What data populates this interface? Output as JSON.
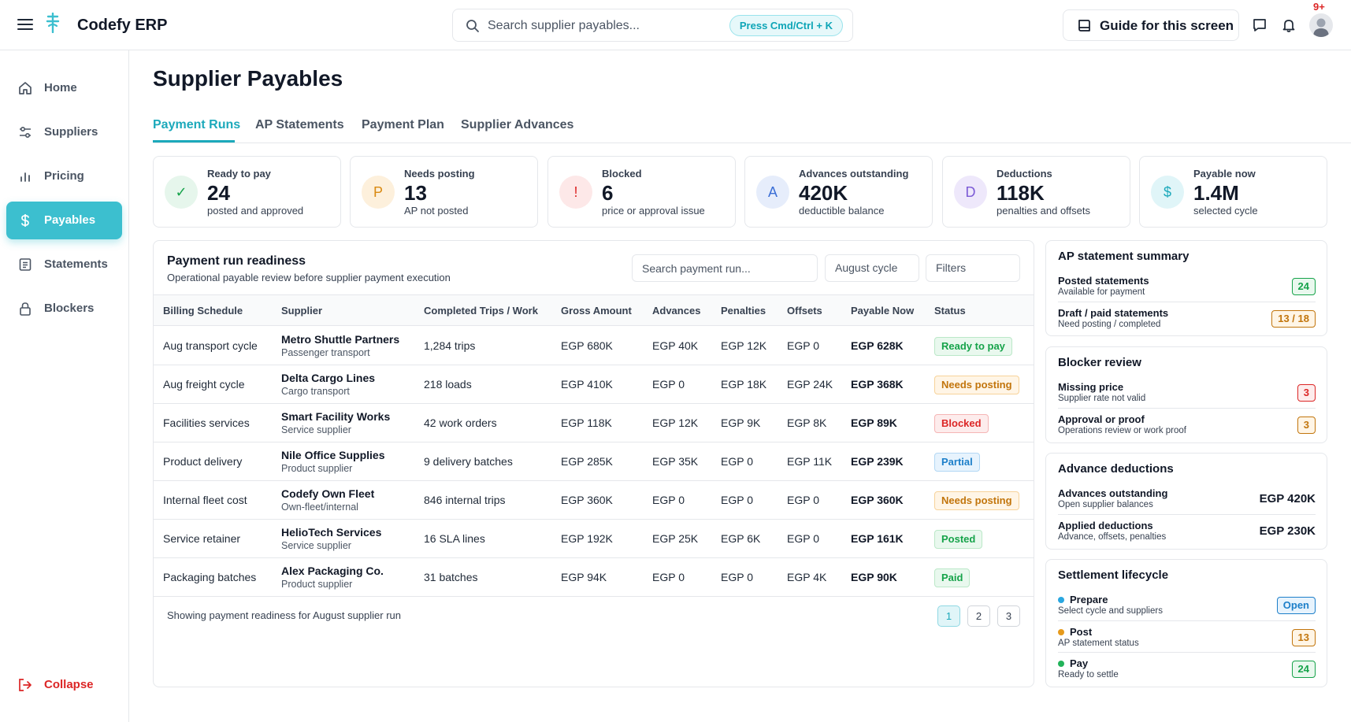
{
  "app": {
    "title": "Codefy ERP",
    "search_placeholder": "Search supplier payables...",
    "search_hint": "Press Cmd/Ctrl + K",
    "guide_label": "Guide for this screen",
    "notification_count": "9+",
    "accent_color": "#3cbfcf"
  },
  "sidebar": {
    "items": [
      {
        "label": "Home",
        "icon": "home-icon"
      },
      {
        "label": "Suppliers",
        "icon": "sliders-icon"
      },
      {
        "label": "Pricing",
        "icon": "bar-chart-icon"
      },
      {
        "label": "Payables",
        "icon": "dollar-icon",
        "active": true
      },
      {
        "label": "Statements",
        "icon": "document-icon"
      },
      {
        "label": "Blockers",
        "icon": "lock-icon"
      }
    ],
    "collapse_label": "Collapse"
  },
  "page": {
    "title": "Supplier Payables",
    "tabs": [
      "Payment Runs",
      "AP Statements",
      "Payment Plan",
      "Supplier Advances"
    ],
    "active_tab": "Payment Runs"
  },
  "kpis": [
    {
      "title": "Ready to pay",
      "value": "24",
      "sub": "posted and approved",
      "icon": "✓",
      "color": "#16a34a",
      "bg": "#e6f6ec"
    },
    {
      "title": "Needs posting",
      "value": "13",
      "sub": "AP not posted",
      "icon": "P",
      "color": "#d98a12",
      "bg": "#fdf0dc"
    },
    {
      "title": "Blocked",
      "value": "6",
      "sub": "price or approval issue",
      "icon": "!",
      "color": "#dc2626",
      "bg": "#fde8e8"
    },
    {
      "title": "Advances outstanding",
      "value": "420K",
      "sub": "deductible balance",
      "icon": "A",
      "color": "#3b6fd6",
      "bg": "#e6edfb"
    },
    {
      "title": "Deductions",
      "value": "118K",
      "sub": "penalties and offsets",
      "icon": "D",
      "color": "#7c5bd6",
      "bg": "#eee8fb"
    },
    {
      "title": "Payable now",
      "value": "1.4M",
      "sub": "selected cycle",
      "icon": "$",
      "color": "#1ca9bb",
      "bg": "#e0f5f8"
    }
  ],
  "table": {
    "title": "Payment run readiness",
    "subtitle": "Operational payable review before supplier payment execution",
    "search_placeholder": "Search payment run...",
    "cycle_select": "August cycle",
    "filters_label": "Filters",
    "columns": [
      "Billing Schedule",
      "Supplier",
      "Completed Trips / Work",
      "Gross Amount",
      "Advances",
      "Penalties",
      "Offsets",
      "Payable Now",
      "Status"
    ],
    "rows": [
      {
        "schedule": "Aug transport cycle",
        "supplier": "Metro Shuttle Partners",
        "supplier_type": "Passenger transport",
        "work": "1,284 trips",
        "gross": "EGP 680K",
        "advances": "EGP 40K",
        "penalties": "EGP 12K",
        "offsets": "EGP 0",
        "payable": "EGP 628K",
        "status": "Ready to pay",
        "status_kind": "green"
      },
      {
        "schedule": "Aug freight cycle",
        "supplier": "Delta Cargo Lines",
        "supplier_type": "Cargo transport",
        "work": "218 loads",
        "gross": "EGP 410K",
        "advances": "EGP 0",
        "penalties": "EGP 18K",
        "offsets": "EGP 24K",
        "payable": "EGP 368K",
        "status": "Needs posting",
        "status_kind": "amber"
      },
      {
        "schedule": "Facilities services",
        "supplier": "Smart Facility Works",
        "supplier_type": "Service supplier",
        "work": "42 work orders",
        "gross": "EGP 118K",
        "advances": "EGP 12K",
        "penalties": "EGP 9K",
        "offsets": "EGP 8K",
        "payable": "EGP 89K",
        "status": "Blocked",
        "status_kind": "red"
      },
      {
        "schedule": "Product delivery",
        "supplier": "Nile Office Supplies",
        "supplier_type": "Product supplier",
        "work": "9 delivery batches",
        "gross": "EGP 285K",
        "advances": "EGP 35K",
        "penalties": "EGP 0",
        "offsets": "EGP 11K",
        "payable": "EGP 239K",
        "status": "Partial",
        "status_kind": "blue"
      },
      {
        "schedule": "Internal fleet cost",
        "supplier": "Codefy Own Fleet",
        "supplier_type": "Own-fleet/internal",
        "work": "846 internal trips",
        "gross": "EGP 360K",
        "advances": "EGP 0",
        "penalties": "EGP 0",
        "offsets": "EGP 0",
        "payable": "EGP 360K",
        "status": "Needs posting",
        "status_kind": "amber"
      },
      {
        "schedule": "Service retainer",
        "supplier": "HelioTech Services",
        "supplier_type": "Service supplier",
        "work": "16 SLA lines",
        "gross": "EGP 192K",
        "advances": "EGP 25K",
        "penalties": "EGP 6K",
        "offsets": "EGP 0",
        "payable": "EGP 161K",
        "status": "Posted",
        "status_kind": "green"
      },
      {
        "schedule": "Packaging batches",
        "supplier": "Alex Packaging Co.",
        "supplier_type": "Product supplier",
        "work": "31 batches",
        "gross": "EGP 94K",
        "advances": "EGP 0",
        "penalties": "EGP 0",
        "offsets": "EGP 4K",
        "payable": "EGP 90K",
        "status": "Paid",
        "status_kind": "green"
      }
    ],
    "footer": "Showing payment readiness for August supplier run",
    "pages": [
      "1",
      "2",
      "3"
    ],
    "current_page": "1"
  },
  "ap_summary": {
    "title": "AP statement summary",
    "rows": [
      {
        "label": "Posted statements",
        "sub": "Available for payment",
        "badge": "24",
        "kind": "green"
      },
      {
        "label": "Draft / paid statements",
        "sub": "Need posting / completed",
        "badge": "13 / 18",
        "kind": "amber"
      }
    ]
  },
  "blocker_review": {
    "title": "Blocker review",
    "rows": [
      {
        "label": "Missing price",
        "sub": "Supplier rate not valid",
        "badge": "3",
        "kind": "red"
      },
      {
        "label": "Approval or proof",
        "sub": "Operations review or work proof",
        "badge": "3",
        "kind": "amber"
      }
    ]
  },
  "advance_deductions": {
    "title": "Advance deductions",
    "rows": [
      {
        "label": "Advances outstanding",
        "sub": "Open supplier balances",
        "amount": "EGP 420K"
      },
      {
        "label": "Applied deductions",
        "sub": "Advance, offsets, penalties",
        "amount": "EGP 230K"
      }
    ]
  },
  "settlement": {
    "title": "Settlement lifecycle",
    "rows": [
      {
        "label": "Prepare",
        "sub": "Select cycle and suppliers",
        "badge": "Open",
        "kind": "blue",
        "dot": "#2aa7e0"
      },
      {
        "label": "Post",
        "sub": "AP statement status",
        "badge": "13",
        "kind": "amber",
        "dot": "#e69a1c"
      },
      {
        "label": "Pay",
        "sub": "Ready to settle",
        "badge": "24",
        "kind": "green",
        "dot": "#22b35a"
      }
    ]
  }
}
